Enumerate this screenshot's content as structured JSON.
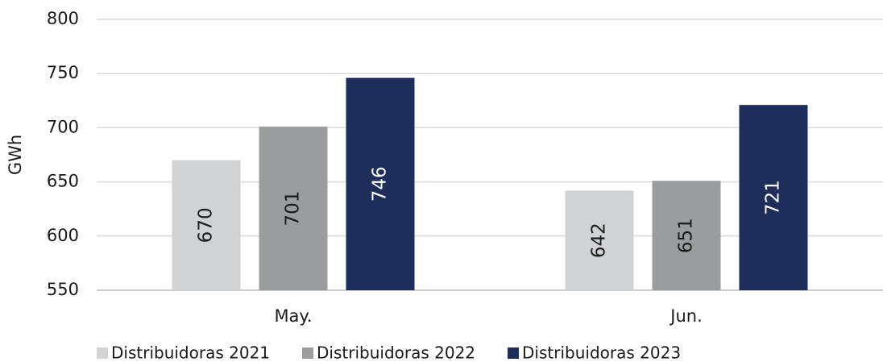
{
  "chart_data": {
    "type": "bar",
    "y_label": "GWh",
    "categories": [
      "May.",
      "Jun."
    ],
    "series": [
      {
        "name": "Distribuidoras 2021",
        "color": "#d0d2d3",
        "values": [
          670,
          642
        ]
      },
      {
        "name": "Distribuidoras 2022",
        "color": "#9a9c9d",
        "values": [
          701,
          651
        ]
      },
      {
        "name": "Distribuidoras 2023",
        "color": "#1f2d5a",
        "values": [
          746,
          721
        ]
      }
    ],
    "ylim": [
      550,
      800
    ],
    "yticks": [
      550,
      600,
      650,
      700,
      750,
      800
    ],
    "grid": true,
    "legend": "bottom"
  }
}
